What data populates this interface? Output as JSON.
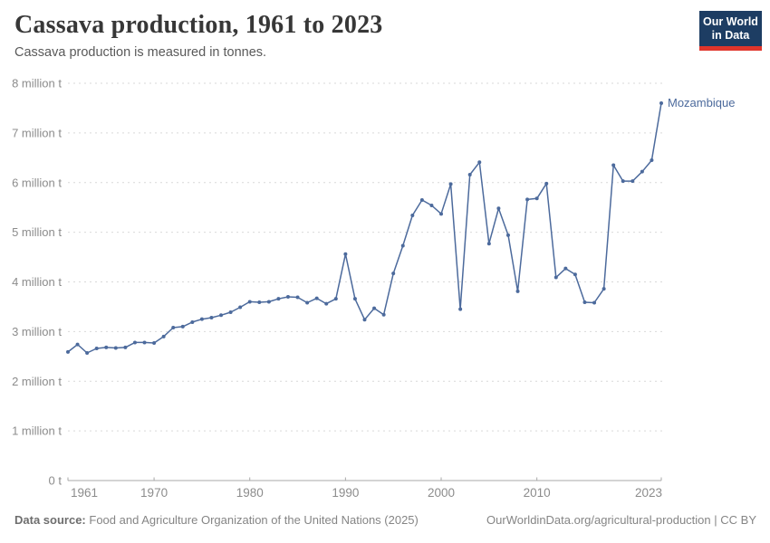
{
  "header": {
    "title": "Cassava production, 1961 to 2023",
    "subtitle": "Cassava production is measured in tonnes.",
    "logo": {
      "line1": "Our World",
      "line2": "in Data"
    }
  },
  "chart_data": {
    "type": "line",
    "title": "Cassava production, 1961 to 2023",
    "ylabel": "",
    "xlabel": "",
    "unit": "million tonnes",
    "xlim": [
      1961,
      2023
    ],
    "ylim": [
      0,
      8
    ],
    "grid": "horizontal-dashed",
    "legend": "end-of-line-label",
    "x_ticks": [
      1961,
      1970,
      1980,
      1990,
      2000,
      2010,
      2023
    ],
    "y_tick_labels": [
      "0 t",
      "1 million t",
      "2 million t",
      "3 million t",
      "4 million t",
      "5 million t",
      "6 million t",
      "7 million t",
      "8 million t"
    ],
    "x": [
      1961,
      1962,
      1963,
      1964,
      1965,
      1966,
      1967,
      1968,
      1969,
      1970,
      1971,
      1972,
      1973,
      1974,
      1975,
      1976,
      1977,
      1978,
      1979,
      1980,
      1981,
      1982,
      1983,
      1984,
      1985,
      1986,
      1987,
      1988,
      1989,
      1990,
      1991,
      1992,
      1993,
      1994,
      1995,
      1996,
      1997,
      1998,
      1999,
      2000,
      2001,
      2002,
      2003,
      2004,
      2005,
      2006,
      2007,
      2008,
      2009,
      2010,
      2011,
      2012,
      2013,
      2014,
      2015,
      2016,
      2017,
      2018,
      2019,
      2020,
      2021,
      2022,
      2023
    ],
    "series": [
      {
        "name": "Mozambique",
        "color": "#4c6a9c",
        "values": [
          2.59,
          2.74,
          2.57,
          2.66,
          2.68,
          2.67,
          2.68,
          2.78,
          2.78,
          2.77,
          2.9,
          3.08,
          3.1,
          3.19,
          3.25,
          3.28,
          3.33,
          3.39,
          3.49,
          3.6,
          3.59,
          3.6,
          3.66,
          3.7,
          3.69,
          3.58,
          3.67,
          3.56,
          3.66,
          4.56,
          3.66,
          3.24,
          3.47,
          3.34,
          4.17,
          4.73,
          5.34,
          5.65,
          5.54,
          5.37,
          5.97,
          3.45,
          6.16,
          6.41,
          4.77,
          5.48,
          4.94,
          3.81,
          5.66,
          5.68,
          5.98,
          4.09,
          4.27,
          4.15,
          3.59,
          3.58,
          3.86,
          6.35,
          6.03,
          6.03,
          6.22,
          6.45,
          7.6
        ]
      }
    ]
  },
  "footer": {
    "source_label": "Data source:",
    "source_text": "Food and Agriculture Organization of the United Nations (2025)",
    "url": "OurWorldinData.org/agricultural-production",
    "separator": " | ",
    "license": "CC BY"
  },
  "colors": {
    "line": "#4c6a9c",
    "grid": "#d9d9d9",
    "axis": "#a8a8a8",
    "tick_label": "#8c8c8c",
    "title": "#373737",
    "subtitle": "#595959",
    "footer": "#858585",
    "logo_bg": "#1d3d63",
    "logo_bar": "#e0352b"
  }
}
